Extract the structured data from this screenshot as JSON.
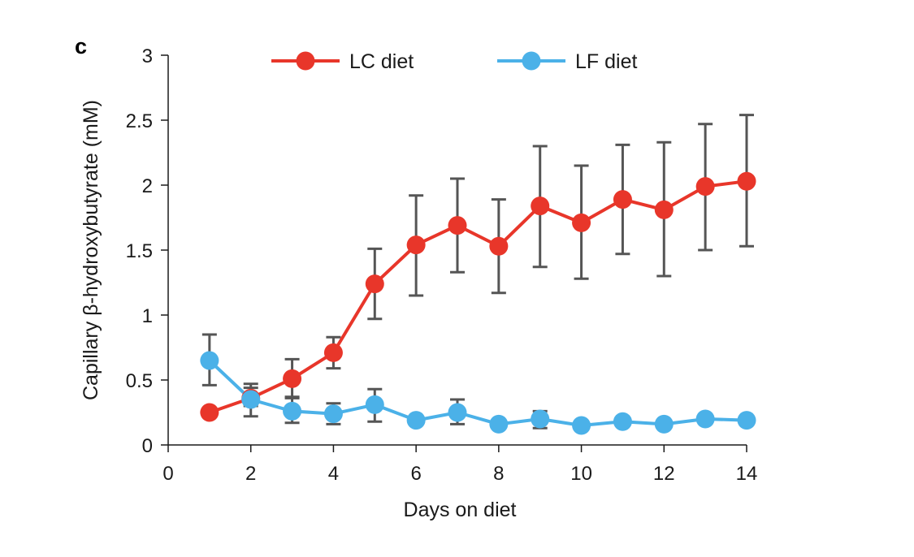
{
  "chart_data": {
    "type": "line",
    "panel_label": "c",
    "xlabel": "Days on diet",
    "ylabel": "Capillary β-hydroxybutyrate (mM)",
    "xlim": [
      0,
      14
    ],
    "ylim": [
      0,
      3
    ],
    "x_ticks": [
      0,
      2,
      4,
      6,
      8,
      10,
      12,
      14
    ],
    "y_ticks": [
      {
        "value": 0,
        "label": "0"
      },
      {
        "value": 0.5,
        "label": "0.5"
      },
      {
        "value": 1,
        "label": "1"
      },
      {
        "value": 1.5,
        "label": "1.5"
      },
      {
        "value": 2,
        "label": "2"
      },
      {
        "value": 2.5,
        "label": "2.5"
      },
      {
        "value": 3,
        "label": "3"
      }
    ],
    "legend_position": "top",
    "grid": false,
    "x": [
      1,
      2,
      3,
      4,
      5,
      6,
      7,
      8,
      9,
      10,
      11,
      12,
      13,
      14
    ],
    "series": [
      {
        "name": "LC diet",
        "color": "#e8362a",
        "values": [
          0.25,
          0.36,
          0.51,
          0.71,
          1.24,
          1.54,
          1.69,
          1.53,
          1.84,
          1.71,
          1.89,
          1.81,
          1.99,
          2.03
        ],
        "error_lower": [
          0.25,
          0.3,
          0.36,
          0.59,
          0.97,
          1.15,
          1.33,
          1.17,
          1.37,
          1.28,
          1.47,
          1.3,
          1.5,
          1.53
        ],
        "error_upper": [
          0.25,
          0.44,
          0.66,
          0.83,
          1.51,
          1.92,
          2.05,
          1.89,
          2.3,
          2.15,
          2.31,
          2.33,
          2.47,
          2.54
        ]
      },
      {
        "name": "LF diet",
        "color": "#4bb1e8",
        "values": [
          0.65,
          0.35,
          0.26,
          0.24,
          0.31,
          0.19,
          0.25,
          0.16,
          0.2,
          0.15,
          0.18,
          0.16,
          0.2,
          0.19
        ],
        "error_lower": [
          0.46,
          0.22,
          0.17,
          0.16,
          0.18,
          0.19,
          0.16,
          0.16,
          0.13,
          0.15,
          0.18,
          0.16,
          0.2,
          0.19
        ],
        "error_upper": [
          0.85,
          0.47,
          0.37,
          0.32,
          0.43,
          0.19,
          0.35,
          0.16,
          0.26,
          0.15,
          0.18,
          0.16,
          0.2,
          0.19
        ]
      }
    ],
    "error_bar_color": "#555555"
  }
}
